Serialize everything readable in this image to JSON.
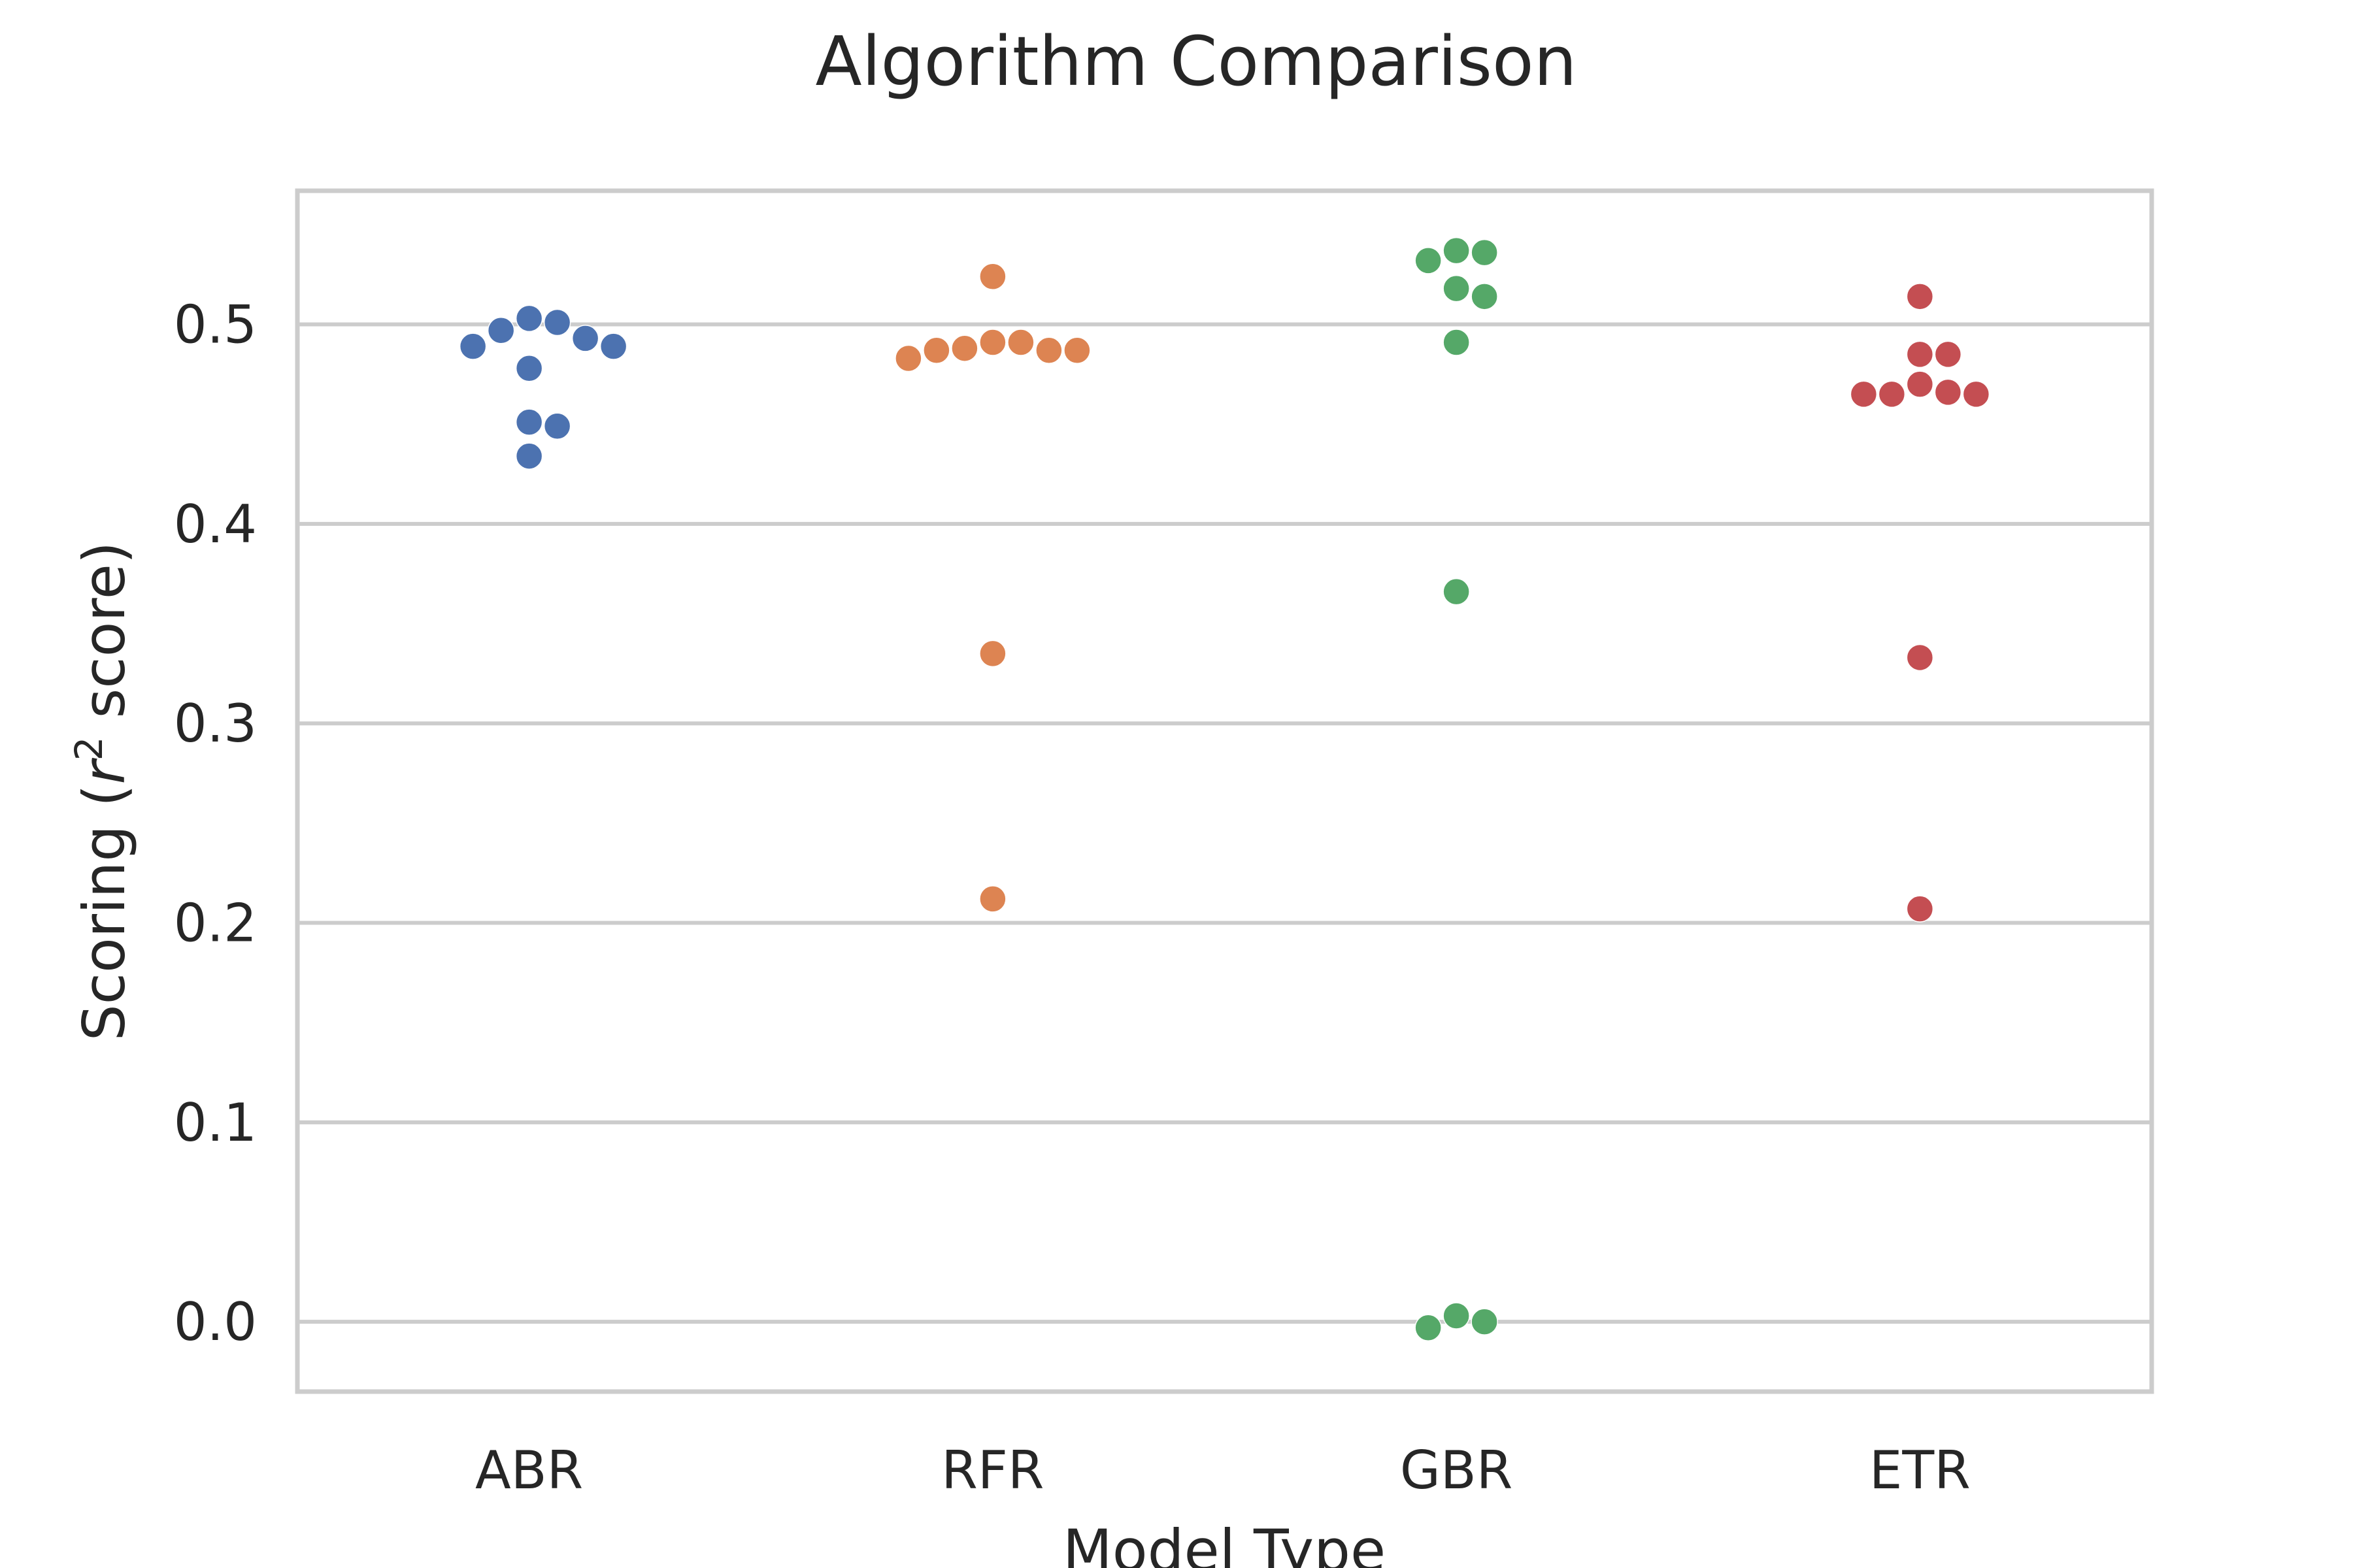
{
  "chart_data": {
    "type": "scatter",
    "subtype": "swarm",
    "title": "Algorithm Comparison",
    "xlabel": "Model Type",
    "ylabel": "Scoring (r² score)",
    "ylabel_parts": {
      "prefix": "Scoring (",
      "var": "r",
      "sup": "2",
      "suffix": " score)"
    },
    "categories": [
      "ABR",
      "RFR",
      "GBR",
      "ETR"
    ],
    "ylim": [
      -0.035,
      0.567
    ],
    "yticks": [
      "0.0",
      "0.1",
      "0.2",
      "0.3",
      "0.4",
      "0.5"
    ],
    "ytick_values": [
      0.0,
      0.1,
      0.2,
      0.3,
      0.4,
      0.5
    ],
    "grid": "horizontal",
    "series": [
      {
        "name": "ABR",
        "color": "#4c72b0",
        "values": [
          0.503,
          0.501,
          0.497,
          0.493,
          0.489,
          0.489,
          0.478,
          0.451,
          0.449,
          0.434
        ]
      },
      {
        "name": "RFR",
        "color": "#dd8452",
        "values": [
          0.524,
          0.491,
          0.491,
          0.488,
          0.487,
          0.487,
          0.487,
          0.483,
          0.335,
          0.212
        ]
      },
      {
        "name": "GBR",
        "color": "#55a868",
        "values": [
          0.537,
          0.536,
          0.532,
          0.518,
          0.514,
          0.491,
          0.366,
          0.003,
          0.0,
          -0.003
        ]
      },
      {
        "name": "ETR",
        "color": "#c44e52",
        "values": [
          0.514,
          0.485,
          0.485,
          0.47,
          0.466,
          0.465,
          0.465,
          0.465,
          0.333,
          0.207
        ]
      }
    ]
  }
}
